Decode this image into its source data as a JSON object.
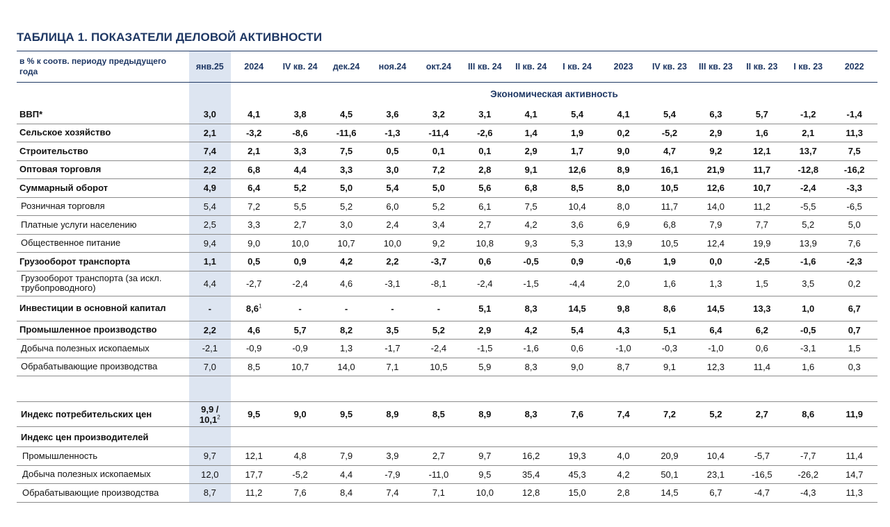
{
  "title": "ТАБЛИЦА 1. ПОКАЗАТЕЛИ ДЕЛОВОЙ АКТИВНОСТИ",
  "header": {
    "label": "в % к соотв. периоду предыдущего года",
    "columns": [
      "янв.25",
      "2024",
      "IV кв. 24",
      "дек.24",
      "ноя.24",
      "окт.24",
      "III кв. 24",
      "II кв. 24",
      "I кв. 24",
      "2023",
      "IV кв. 23",
      "III кв. 23",
      "II кв. 23",
      "I кв. 23",
      "2022"
    ]
  },
  "section_title": "Экономическая активность",
  "rows": [
    {
      "label": "ВВП*",
      "style": "bold",
      "values": [
        "3,0",
        "4,1",
        "3,8",
        "4,5",
        "3,6",
        "3,2",
        "3,1",
        "4,1",
        "5,4",
        "4,1",
        "5,4",
        "6,3",
        "5,7",
        "-1,2",
        "-1,4"
      ]
    },
    {
      "label": "Сельское хозяйство",
      "style": "bold",
      "values": [
        "2,1",
        "-3,2",
        "-8,6",
        "-11,6",
        "-1,3",
        "-11,4",
        "-2,6",
        "1,4",
        "1,9",
        "0,2",
        "-5,2",
        "2,9",
        "1,6",
        "2,1",
        "11,3"
      ]
    },
    {
      "label": "Строительство",
      "style": "bold",
      "values": [
        "7,4",
        "2,1",
        "3,3",
        "7,5",
        "0,5",
        "0,1",
        "0,1",
        "2,9",
        "1,7",
        "9,0",
        "4,7",
        "9,2",
        "12,1",
        "13,7",
        "7,5"
      ]
    },
    {
      "label": "Оптовая торговля",
      "style": "bold",
      "values": [
        "2,2",
        "6,8",
        "4,4",
        "3,3",
        "3,0",
        "7,2",
        "2,8",
        "9,1",
        "12,6",
        "8,9",
        "16,1",
        "21,9",
        "11,7",
        "-12,8",
        "-16,2"
      ]
    },
    {
      "label": "Суммарный оборот",
      "style": "bold",
      "values": [
        "4,9",
        "6,4",
        "5,2",
        "5,0",
        "5,4",
        "5,0",
        "5,6",
        "6,8",
        "8,5",
        "8,0",
        "10,5",
        "12,6",
        "10,7",
        "-2,4",
        "-3,3"
      ]
    },
    {
      "label": "Розничная торговля",
      "style": "indent",
      "values": [
        "5,4",
        "7,2",
        "5,5",
        "5,2",
        "6,0",
        "5,2",
        "6,1",
        "7,5",
        "10,4",
        "8,0",
        "11,7",
        "14,0",
        "11,2",
        "-5,5",
        "-6,5"
      ]
    },
    {
      "label": "Платные услуги населению",
      "style": "indent",
      "values": [
        "2,5",
        "3,3",
        "2,7",
        "3,0",
        "2,4",
        "3,4",
        "2,7",
        "4,2",
        "3,6",
        "6,9",
        "6,8",
        "7,9",
        "7,7",
        "5,2",
        "5,0"
      ]
    },
    {
      "label": "Общественное питание",
      "style": "indent",
      "values": [
        "9,4",
        "9,0",
        "10,0",
        "10,7",
        "10,0",
        "9,2",
        "10,8",
        "9,3",
        "5,3",
        "13,9",
        "10,5",
        "12,4",
        "19,9",
        "13,9",
        "7,6"
      ]
    },
    {
      "label": "Грузооборот транспорта",
      "style": "bold",
      "values": [
        "1,1",
        "0,5",
        "0,9",
        "4,2",
        "2,2",
        "-3,7",
        "0,6",
        "-0,5",
        "0,9",
        "-0,6",
        "1,9",
        "0,0",
        "-2,5",
        "-1,6",
        "-2,3"
      ]
    },
    {
      "label": "Грузооборот транспорта (за искл. трубопроводного)",
      "style": "indent tall",
      "values": [
        "4,4",
        "-2,7",
        "-2,4",
        "4,6",
        "-3,1",
        "-8,1",
        "-2,4",
        "-1,5",
        "-4,4",
        "2,0",
        "1,6",
        "1,3",
        "1,5",
        "3,5",
        "0,2"
      ]
    },
    {
      "label": "Инвестиции в основной капитал",
      "style": "bold tall",
      "values": [
        "-",
        "8,6",
        "-",
        "-",
        "-",
        "-",
        "5,1",
        "8,3",
        "14,5",
        "9,8",
        "8,6",
        "14,5",
        "13,3",
        "1,0",
        "6,7"
      ],
      "sup": {
        "1": "1"
      }
    },
    {
      "label": "Промышленное производство",
      "style": "bold",
      "values": [
        "2,2",
        "4,6",
        "5,7",
        "8,2",
        "3,5",
        "5,2",
        "2,9",
        "4,2",
        "5,4",
        "4,3",
        "5,1",
        "6,4",
        "6,2",
        "-0,5",
        "0,7"
      ]
    },
    {
      "label": "Добыча полезных ископаемых",
      "style": "indent",
      "values": [
        "-2,1",
        "-0,9",
        "-0,9",
        "1,3",
        "-1,7",
        "-2,4",
        "-1,5",
        "-1,6",
        "0,6",
        "-1,0",
        "-0,3",
        "-1,0",
        "0,6",
        "-3,1",
        "1,5"
      ]
    },
    {
      "label": "Обрабатывающие производства",
      "style": "indent",
      "values": [
        "7,0",
        "8,5",
        "10,7",
        "14,0",
        "7,1",
        "10,5",
        "5,9",
        "8,3",
        "9,0",
        "8,7",
        "9,1",
        "12,3",
        "11,4",
        "1,6",
        "0,3"
      ]
    }
  ],
  "cpi": {
    "label": "Индекс потребительских цен",
    "jan_line1": "9,9 /",
    "jan_line2": "10,1",
    "jan_sup": "2",
    "values": [
      "9,5",
      "9,0",
      "9,5",
      "8,9",
      "8,5",
      "8,9",
      "8,3",
      "7,6",
      "7,4",
      "7,2",
      "5,2",
      "2,7",
      "8,6",
      "11,9"
    ]
  },
  "ppi_title": "Индекс цен производителей",
  "ppi_rows": [
    {
      "label": "Промышленность",
      "values": [
        "9,7",
        "12,1",
        "4,8",
        "7,9",
        "3,9",
        "2,7",
        "9,7",
        "16,2",
        "19,3",
        "4,0",
        "20,9",
        "10,4",
        "-5,7",
        "-7,7",
        "11,4"
      ]
    },
    {
      "label": "Добыча полезных ископаемых",
      "values": [
        "12,0",
        "17,7",
        "-5,2",
        "4,4",
        "-7,9",
        "-11,0",
        "9,5",
        "35,4",
        "45,3",
        "4,2",
        "50,1",
        "23,1",
        "-16,5",
        "-26,2",
        "14,7"
      ]
    },
    {
      "label": "Обрабатывающие производства",
      "values": [
        "8,7",
        "11,2",
        "7,6",
        "8,4",
        "7,4",
        "7,1",
        "10,0",
        "12,8",
        "15,0",
        "2,8",
        "14,5",
        "6,7",
        "-4,7",
        "-4,3",
        "11,3"
      ]
    }
  ],
  "colors": {
    "title": "#1f3864",
    "highlight": "#dde5f1",
    "rule": "#8b8b8b"
  }
}
